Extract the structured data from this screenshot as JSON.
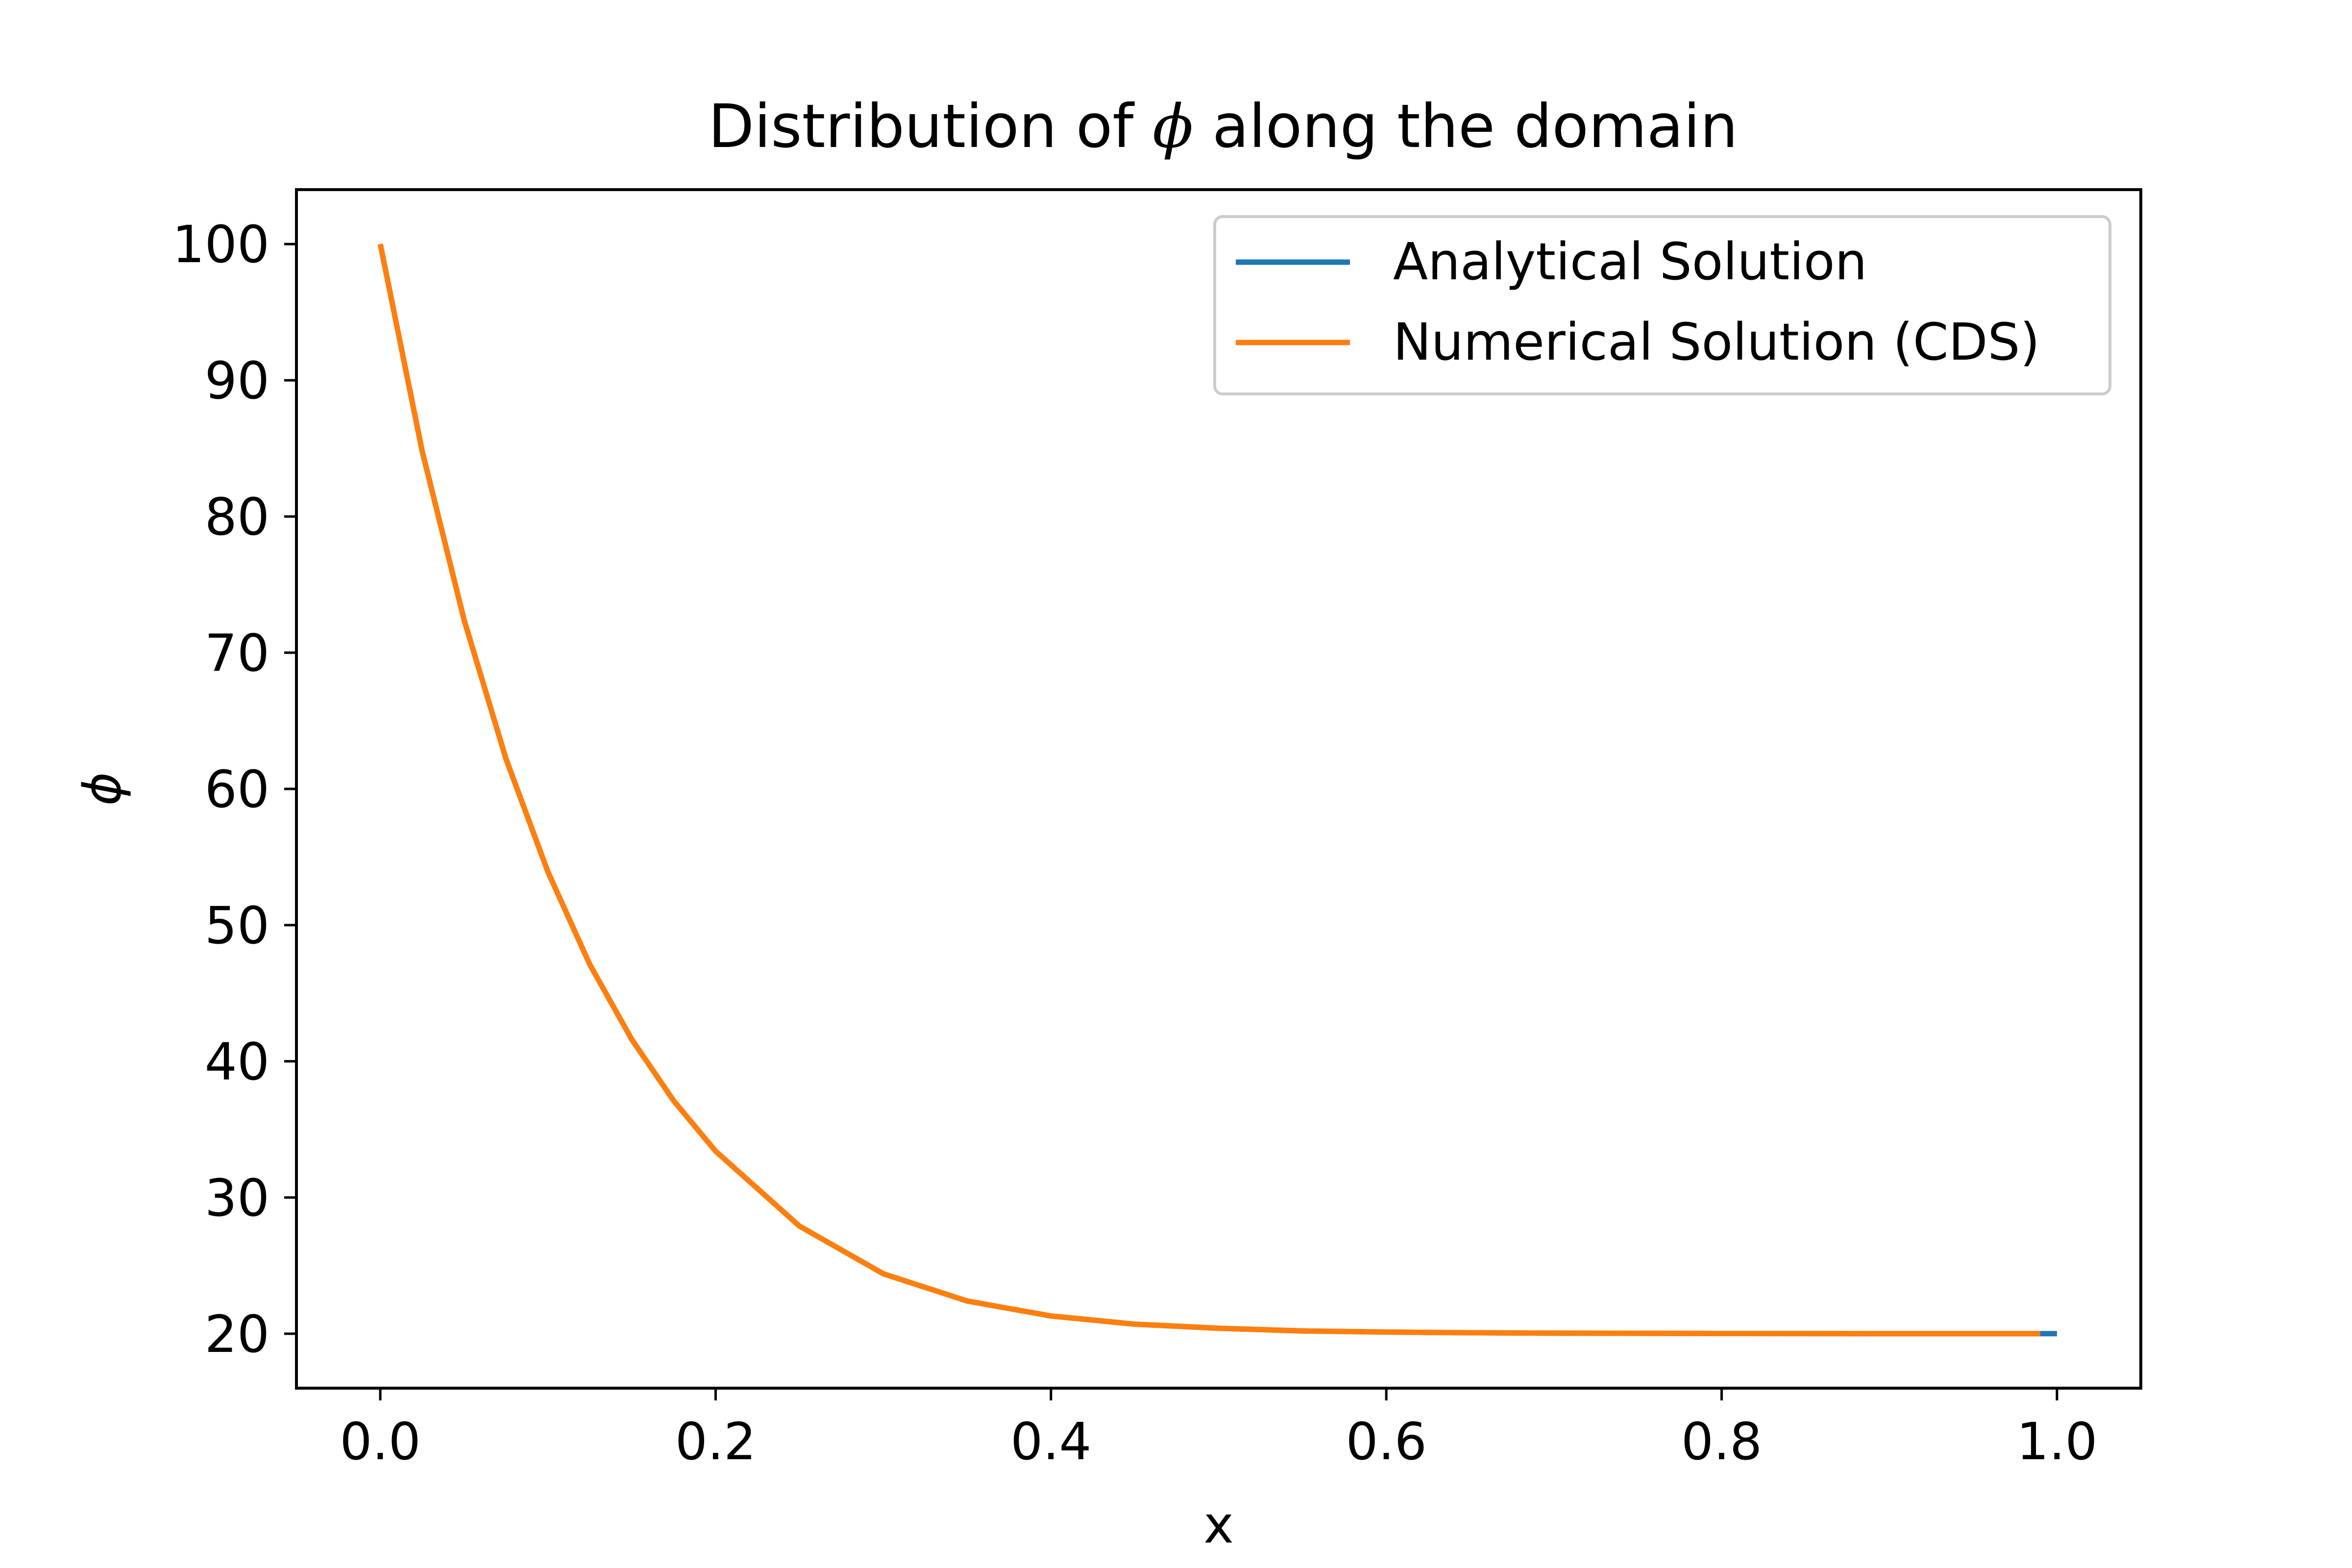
{
  "chart_data": {
    "type": "line",
    "title": {
      "before": "Distribution of ",
      "symbol": "ϕ",
      "after": " along the domain"
    },
    "xlabel": "x",
    "ylabel": "ϕ",
    "xlim": [
      -0.05,
      1.05
    ],
    "ylim": [
      16,
      104
    ],
    "xticks": [
      0.0,
      0.2,
      0.4,
      0.6,
      0.8,
      1.0
    ],
    "xtick_labels": [
      "0.0",
      "0.2",
      "0.4",
      "0.6",
      "0.8",
      "1.0"
    ],
    "yticks": [
      20,
      30,
      40,
      50,
      60,
      70,
      80,
      90,
      100
    ],
    "ytick_labels": [
      "20",
      "30",
      "40",
      "50",
      "60",
      "70",
      "80",
      "90",
      "100"
    ],
    "grid": false,
    "legend_position": "top-right",
    "colors": {
      "analytical": "#1f77b4",
      "numerical": "#ff7f0e"
    },
    "series": [
      {
        "name": "Analytical Solution",
        "x": [
          0.0,
          0.025,
          0.05,
          0.075,
          0.1,
          0.125,
          0.15,
          0.175,
          0.2,
          0.25,
          0.3,
          0.35,
          0.4,
          0.45,
          0.5,
          0.55,
          0.6,
          0.65,
          0.7,
          0.8,
          0.9,
          1.0
        ],
        "y": [
          100,
          84.8,
          72.4,
          62.2,
          53.9,
          47.1,
          41.6,
          37.1,
          33.4,
          27.9,
          24.4,
          22.4,
          21.3,
          20.7,
          20.4,
          20.2,
          20.12,
          20.07,
          20.04,
          20.01,
          20.0,
          20.0
        ]
      },
      {
        "name": "Numerical Solution (CDS)",
        "x": [
          0.0,
          0.025,
          0.05,
          0.075,
          0.1,
          0.125,
          0.15,
          0.175,
          0.2,
          0.25,
          0.3,
          0.35,
          0.4,
          0.45,
          0.5,
          0.55,
          0.6,
          0.65,
          0.7,
          0.8,
          0.9,
          0.99
        ],
        "y": [
          100,
          84.8,
          72.4,
          62.2,
          53.9,
          47.1,
          41.6,
          37.1,
          33.4,
          27.9,
          24.4,
          22.4,
          21.3,
          20.7,
          20.4,
          20.2,
          20.12,
          20.07,
          20.04,
          20.01,
          20.0,
          20.0
        ]
      }
    ]
  }
}
